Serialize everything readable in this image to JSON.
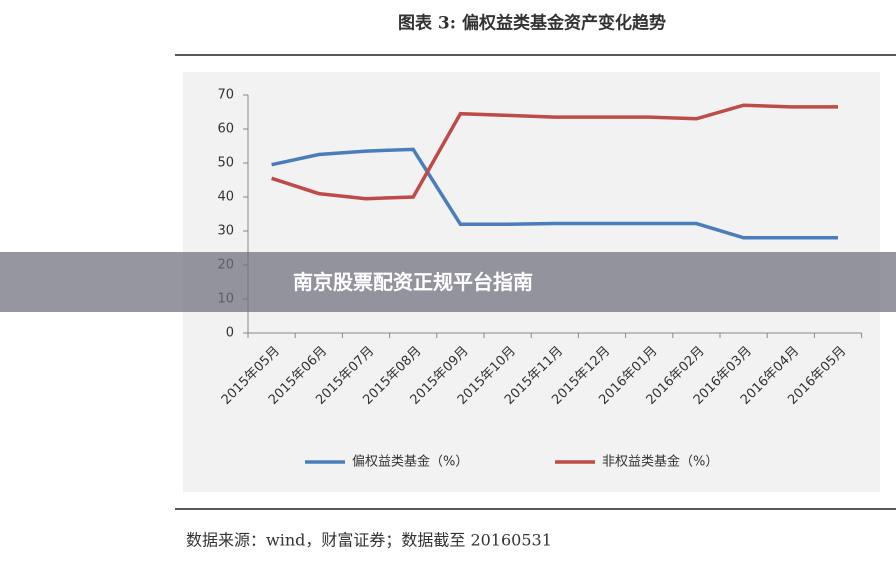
{
  "header": {
    "title": "图表 3:  偏权益类基金资产变化趋势"
  },
  "banner": {
    "text": "南京股票配资正规平台指南"
  },
  "footer": {
    "source": "数据来源：wind，财富证券；数据截至 20160531"
  },
  "chart_data": {
    "type": "line",
    "categories": [
      "2015年05月",
      "2015年06月",
      "2015年07月",
      "2015年08月",
      "2015年09月",
      "2015年10月",
      "2015年11月",
      "2015年12月",
      "2016年01月",
      "2016年02月",
      "2016年03月",
      "2016年04月",
      "2016年05月"
    ],
    "series": [
      {
        "name": "偏权益类基金（%）",
        "color": "#4a7ebb",
        "values": [
          49.5,
          52.5,
          53.5,
          54,
          32,
          32,
          32.2,
          32.2,
          32.2,
          32.2,
          28,
          28,
          28
        ]
      },
      {
        "name": "非权益类基金（%）",
        "color": "#be4b48",
        "values": [
          45.5,
          41,
          39.5,
          40,
          64.5,
          64,
          63.5,
          63.5,
          63.5,
          63,
          67,
          66.5,
          66.5
        ]
      }
    ],
    "ylim": [
      0,
      70
    ],
    "yticks": [
      0,
      10,
      20,
      30,
      40,
      50,
      60,
      70
    ],
    "grid": false,
    "legend": "bottom"
  }
}
